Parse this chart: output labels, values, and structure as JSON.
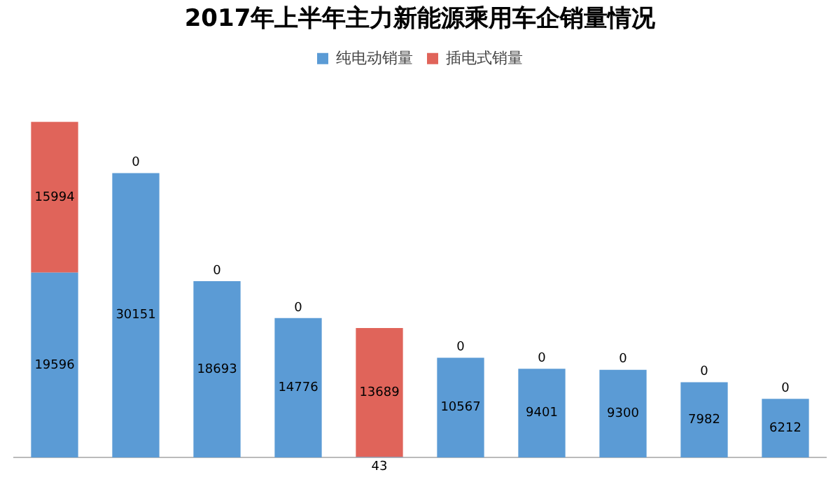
{
  "chart_data": {
    "type": "bar",
    "title": "2017年上半年主力新能源乘用车企销量情况",
    "categories": [
      null,
      null,
      null,
      null,
      null,
      null,
      null,
      null,
      null,
      null
    ],
    "stacked": true,
    "data_labels": true,
    "legend": "top",
    "grid": false,
    "tick_labels": false,
    "series": [
      {
        "name": "纯电动销量",
        "color": "#5b9bd5",
        "values": [
          19596,
          30151,
          18693,
          14776,
          43,
          10567,
          9401,
          9300,
          7982,
          6212
        ]
      },
      {
        "name": "插电式销量",
        "color": "#e0645a",
        "values": [
          15994,
          0,
          0,
          0,
          13689,
          0,
          0,
          0,
          0,
          0
        ]
      }
    ]
  }
}
